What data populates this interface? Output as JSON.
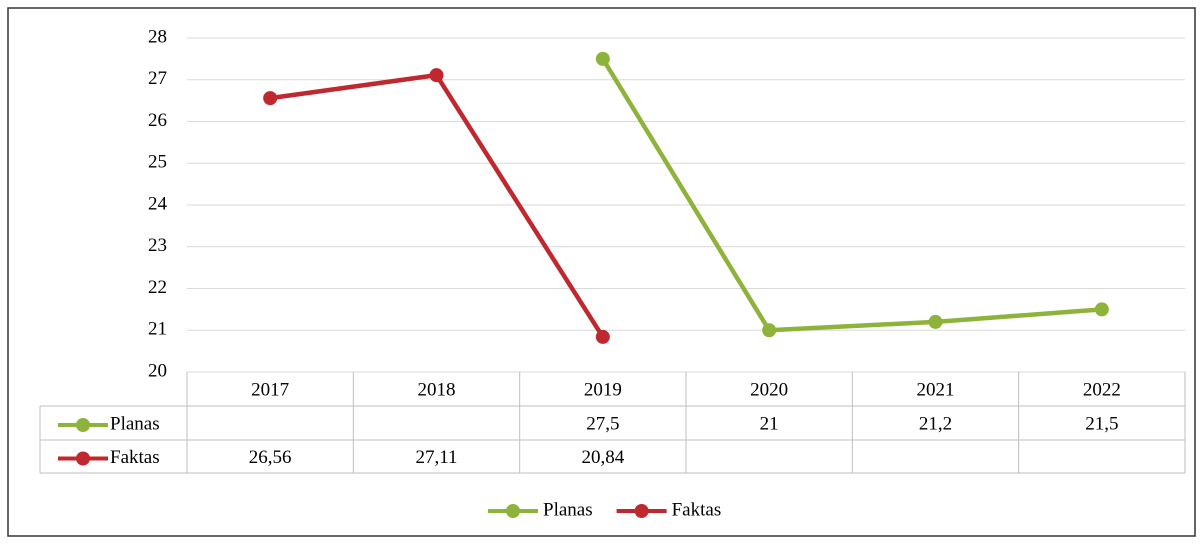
{
  "chart_data": {
    "type": "line",
    "categories": [
      "2017",
      "2018",
      "2019",
      "2020",
      "2021",
      "2022"
    ],
    "series": [
      {
        "name": "Planas",
        "color": "#8db33a",
        "values": [
          null,
          null,
          27.5,
          21,
          21.2,
          21.5
        ],
        "value_labels": [
          null,
          null,
          "27,5",
          "21",
          "21,2",
          "21,5"
        ]
      },
      {
        "name": "Faktas",
        "color": "#c0282f",
        "values": [
          26.56,
          27.11,
          20.84,
          null,
          null,
          null
        ],
        "value_labels": [
          "26,56",
          "27,11",
          "20,84",
          null,
          null,
          null
        ]
      }
    ],
    "ylim": [
      20,
      28
    ],
    "yticks": [
      20,
      21,
      22,
      23,
      24,
      25,
      26,
      27,
      28
    ],
    "grid": true,
    "legend": "bottom",
    "data_table": true
  }
}
